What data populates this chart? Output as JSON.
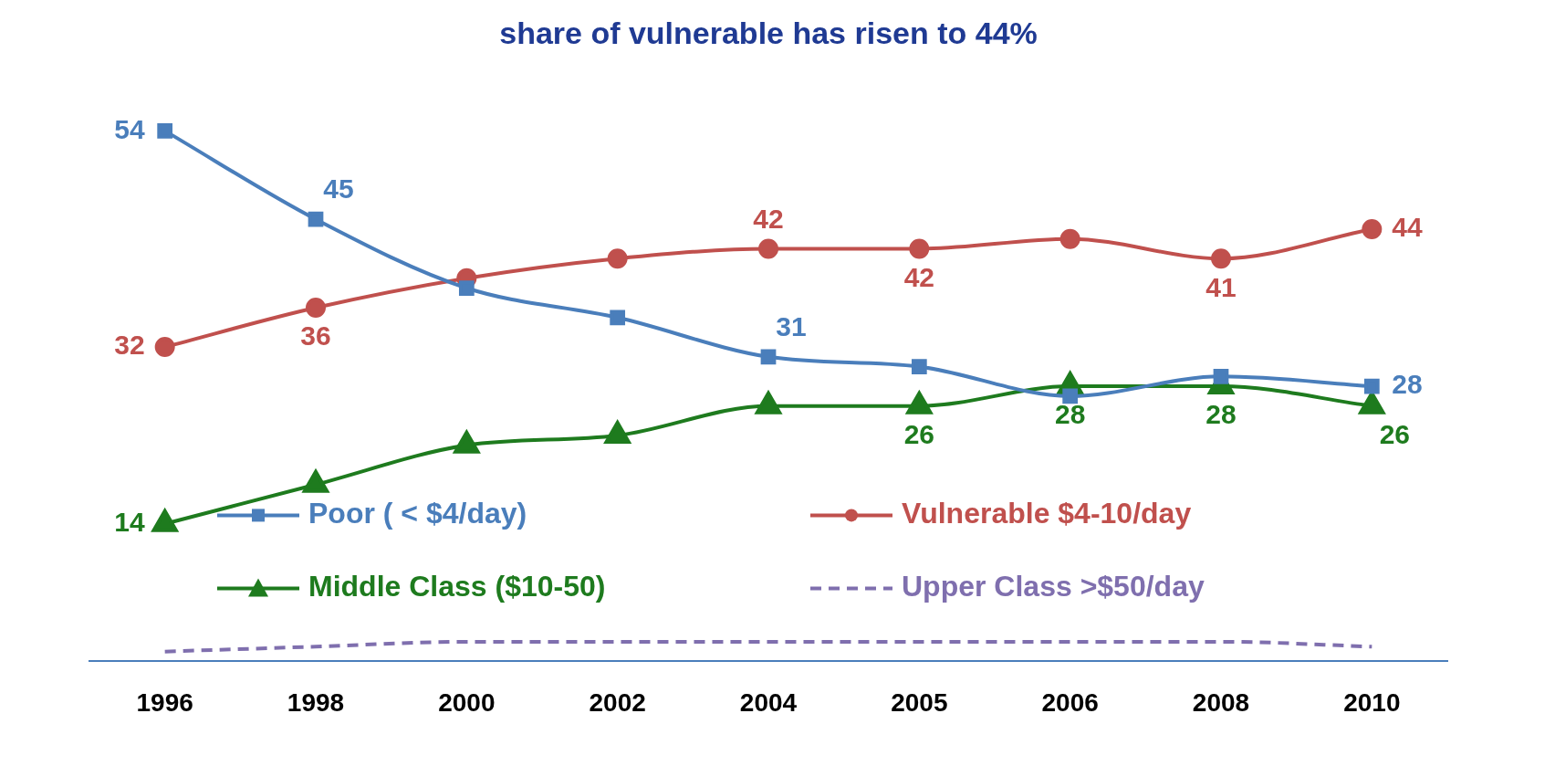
{
  "chart_data": {
    "type": "line",
    "title": "share of vulnerable has risen to 44%",
    "categories": [
      "1996",
      "1998",
      "2000",
      "2002",
      "2004",
      "2005",
      "2006",
      "2008",
      "2010"
    ],
    "series": [
      {
        "name": "Poor ( < $4/day)",
        "color": "#4a7ebb",
        "marker": "square",
        "values": [
          54,
          45,
          38,
          35,
          31,
          30,
          27,
          29,
          28
        ],
        "value_labels": [
          "54",
          "45",
          null,
          null,
          "31",
          null,
          null,
          null,
          "28"
        ]
      },
      {
        "name": "Vulnerable $4-10/day",
        "color": "#c0504d",
        "marker": "circle",
        "values": [
          32,
          36,
          39,
          41,
          42,
          42,
          43,
          41,
          44
        ],
        "value_labels": [
          "32",
          "36",
          null,
          null,
          "42",
          "42",
          null,
          "41",
          "44"
        ]
      },
      {
        "name": "Middle Class ($10-50)",
        "color": "#1e7b1e",
        "marker": "triangle",
        "values": [
          14,
          18,
          22,
          23,
          26,
          26,
          28,
          28,
          26
        ],
        "value_labels": [
          "14",
          null,
          null,
          null,
          null,
          "26",
          "28",
          "28",
          "26"
        ]
      },
      {
        "name": "Upper Class >$50/day",
        "color": "#7f6fae",
        "marker": "none",
        "line_style": "dashed",
        "values": [
          1,
          1.5,
          2,
          2,
          2,
          2,
          2,
          2,
          1.5
        ]
      }
    ],
    "tick_labels": "x",
    "grid": false,
    "legend": "bottom"
  }
}
